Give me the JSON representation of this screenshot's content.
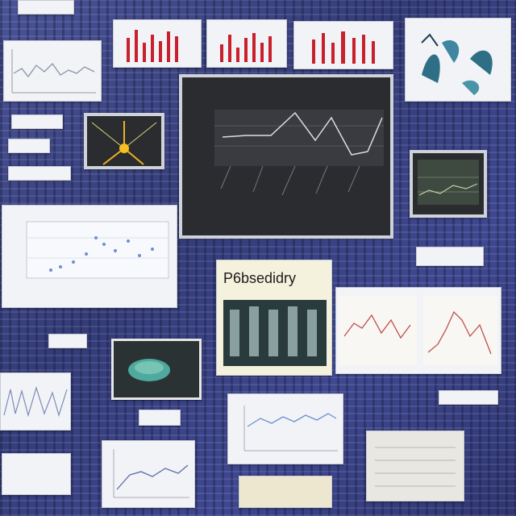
{
  "collage": {
    "colors": {
      "background": "#3c4585",
      "card": "#f2f3f6",
      "accent_red": "#c8202c",
      "screen": "#2b2c30",
      "plot_blue": "#6e8fd0"
    },
    "labels": {
      "top_left_tag": "",
      "small_tag_a": "",
      "small_tag_b": "",
      "scatter_title": "",
      "scatter_subtitle": "",
      "screen_header": "",
      "center_banner": "P6bsedidry",
      "mid_left_tag": "",
      "center_tag": "",
      "right_tag": "",
      "right_small_tag": "",
      "bottom_left_card": "",
      "bottom_center_card": ""
    },
    "icons": {
      "burst": "starburst-icon",
      "leaf": "leaf-icon"
    }
  }
}
